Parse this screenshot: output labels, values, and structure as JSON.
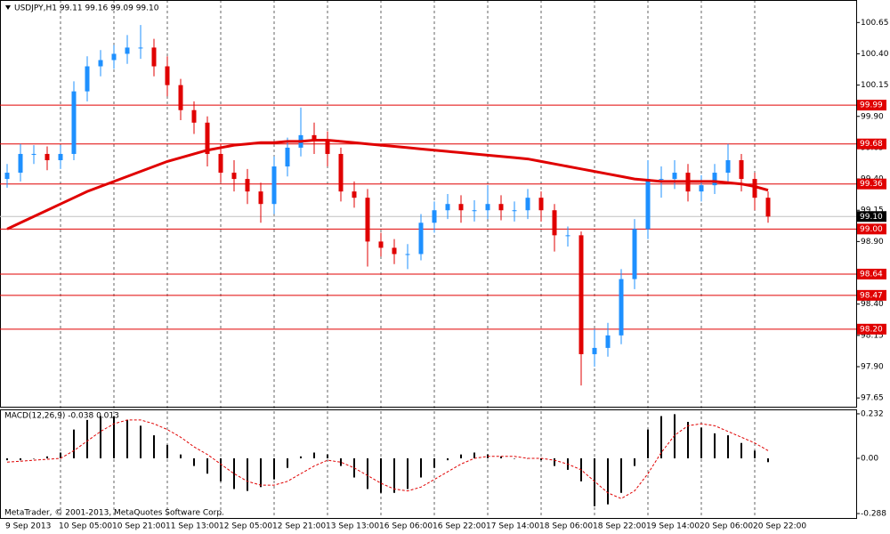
{
  "chart_data": [
    {
      "type": "candlestick",
      "title": "USDJPY,H1  99.11 99.16 99.09 99.10",
      "categories": [
        "9 Sep 2013",
        null,
        null,
        null,
        "10 Sep 05:00",
        null,
        null,
        null,
        "10 Sep 21:00",
        null,
        null,
        null,
        "11 Sep 13:00",
        null,
        null,
        null,
        "12 Sep 05:00",
        null,
        null,
        null,
        "12 Sep 21:00",
        null,
        null,
        null,
        "13 Sep 13:00",
        null,
        null,
        null,
        "16 Sep 06:00",
        null,
        null,
        null,
        "16 Sep 22:00",
        null,
        null,
        null,
        "17 Sep 14:00",
        null,
        null,
        null,
        "18 Sep 06:00",
        null,
        null,
        null,
        "18 Sep 22:00",
        null,
        null,
        null,
        "19 Sep 14:00",
        null,
        null,
        null,
        "20 Sep 06:00",
        null,
        null,
        null,
        "20 Sep 22:00",
        null
      ],
      "open": [
        99.4,
        99.45,
        99.6,
        99.6,
        99.55,
        99.6,
        100.1,
        100.3,
        100.35,
        100.4,
        100.45,
        100.45,
        100.3,
        100.15,
        99.95,
        99.85,
        99.6,
        99.45,
        99.4,
        99.3,
        99.2,
        99.5,
        99.65,
        99.75,
        99.7,
        99.6,
        99.3,
        99.25,
        98.9,
        98.85,
        98.8,
        98.8,
        99.05,
        99.15,
        99.2,
        99.15,
        99.15,
        99.2,
        99.15,
        99.15,
        99.25,
        99.15,
        98.95,
        98.95,
        98.0,
        98.05,
        98.15,
        98.6,
        99.0,
        99.4,
        99.4,
        99.45,
        99.3,
        99.35,
        99.45,
        99.55,
        99.4,
        99.25
      ],
      "high": [
        99.52,
        99.68,
        99.67,
        99.66,
        99.67,
        100.18,
        100.38,
        100.43,
        100.47,
        100.55,
        100.63,
        100.52,
        100.38,
        100.2,
        100.02,
        99.9,
        99.68,
        99.55,
        99.48,
        99.37,
        99.58,
        99.73,
        99.97,
        99.85,
        99.78,
        99.65,
        99.38,
        99.32,
        98.97,
        98.92,
        98.88,
        99.12,
        99.22,
        99.28,
        99.27,
        99.23,
        99.35,
        99.27,
        99.22,
        99.32,
        99.3,
        99.2,
        99.02,
        98.98,
        98.2,
        98.25,
        98.68,
        99.08,
        99.55,
        99.5,
        99.55,
        99.52,
        99.43,
        99.52,
        99.68,
        99.6,
        99.45,
        99.3
      ],
      "low": [
        99.33,
        99.38,
        99.52,
        99.47,
        99.48,
        99.55,
        100.02,
        100.22,
        100.28,
        100.32,
        100.36,
        100.22,
        100.06,
        99.87,
        99.76,
        99.5,
        99.37,
        99.3,
        99.2,
        99.05,
        99.12,
        99.42,
        99.58,
        99.6,
        99.5,
        99.22,
        99.17,
        98.7,
        98.78,
        98.72,
        98.68,
        98.75,
        98.97,
        99.08,
        99.05,
        99.06,
        99.08,
        99.07,
        99.06,
        99.08,
        99.06,
        98.82,
        98.86,
        97.75,
        97.9,
        97.98,
        98.08,
        98.52,
        98.92,
        99.25,
        99.32,
        99.22,
        99.22,
        99.28,
        99.38,
        99.3,
        99.15,
        99.05
      ],
      "close": [
        99.45,
        99.6,
        99.6,
        99.55,
        99.6,
        100.1,
        100.3,
        100.35,
        100.4,
        100.45,
        100.45,
        100.3,
        100.15,
        99.95,
        99.85,
        99.6,
        99.45,
        99.4,
        99.3,
        99.2,
        99.5,
        99.65,
        99.75,
        99.7,
        99.6,
        99.3,
        99.25,
        98.9,
        98.85,
        98.8,
        98.8,
        99.05,
        99.15,
        99.2,
        99.15,
        99.15,
        99.2,
        99.15,
        99.15,
        99.25,
        99.15,
        98.95,
        98.95,
        98.0,
        98.05,
        98.15,
        98.6,
        99.0,
        99.4,
        99.4,
        99.45,
        99.3,
        99.35,
        99.45,
        99.55,
        99.4,
        99.25,
        99.1
      ],
      "up_color": "#1e90ff",
      "down_color": "#e00000",
      "moving_average": {
        "color": "#e00000",
        "values": [
          99.0,
          99.05,
          99.1,
          99.15,
          99.2,
          99.25,
          99.3,
          99.34,
          99.38,
          99.42,
          99.46,
          99.5,
          99.54,
          99.57,
          99.6,
          99.63,
          99.65,
          99.67,
          99.68,
          99.69,
          99.69,
          99.7,
          99.7,
          99.71,
          99.71,
          99.7,
          99.69,
          99.68,
          99.67,
          99.66,
          99.65,
          99.64,
          99.63,
          99.62,
          99.61,
          99.6,
          99.59,
          99.58,
          99.57,
          99.56,
          99.54,
          99.52,
          99.5,
          99.48,
          99.46,
          99.44,
          99.42,
          99.4,
          99.39,
          99.38,
          99.38,
          99.38,
          99.38,
          99.38,
          99.37,
          99.36,
          99.34,
          99.31
        ]
      },
      "levels": [
        99.99,
        99.68,
        99.36,
        {
          "value": 99.0,
          "label": "99.00"
        },
        98.64,
        98.47,
        {
          "value": 98.2,
          "label": "98.20"
        }
      ],
      "level_color": "#e00000",
      "current_price": {
        "value": 99.1,
        "label": "99.10"
      },
      "ylim": [
        97.58,
        100.83
      ],
      "yticks": [
        100.65,
        {
          "value": 100.4,
          "label": "100.40"
        },
        100.15,
        {
          "value": 99.9,
          "label": "99.90"
        },
        99.65,
        {
          "value": 99.4,
          "label": "99.40"
        },
        99.15,
        {
          "value": 98.9,
          "label": "98.90"
        },
        98.65,
        {
          "value": 98.4,
          "label": "98.40"
        },
        98.15,
        {
          "value": 97.9,
          "label": "97.90"
        },
        97.65
      ],
      "grid": true
    },
    {
      "type": "macd",
      "title": "MACD(12,26,9) -0.038 0.013",
      "annotation": "MetaTrader, © 2001-2013, MetaQuotes Software Corp.",
      "series": [
        {
          "name": "MACD",
          "color": "#000000",
          "values": [
            -0.01,
            -0.01,
            0.0,
            0.01,
            0.03,
            0.15,
            0.2,
            0.22,
            0.22,
            0.2,
            0.17,
            0.12,
            0.07,
            0.02,
            -0.04,
            -0.08,
            -0.12,
            -0.16,
            -0.17,
            -0.15,
            -0.11,
            -0.05,
            0.01,
            0.03,
            0.02,
            -0.04,
            -0.1,
            -0.16,
            -0.18,
            -0.18,
            -0.16,
            -0.1,
            -0.05,
            -0.01,
            0.02,
            0.03,
            0.02,
            0.01,
            0.0,
            0.0,
            -0.01,
            -0.04,
            -0.06,
            -0.12,
            -0.25,
            -0.24,
            -0.18,
            -0.04,
            0.15,
            0.22,
            0.23,
            0.19,
            0.16,
            0.13,
            0.12,
            0.08,
            0.04,
            -0.02
          ]
        },
        {
          "name": "Signal",
          "color": "#e00000",
          "values": [
            -0.02,
            -0.015,
            -0.01,
            -0.005,
            0.0,
            0.04,
            0.09,
            0.14,
            0.18,
            0.2,
            0.2,
            0.18,
            0.15,
            0.11,
            0.06,
            0.02,
            -0.03,
            -0.08,
            -0.12,
            -0.14,
            -0.14,
            -0.12,
            -0.08,
            -0.04,
            -0.01,
            -0.02,
            -0.05,
            -0.09,
            -0.13,
            -0.16,
            -0.17,
            -0.15,
            -0.11,
            -0.07,
            -0.03,
            0.0,
            0.01,
            0.01,
            0.01,
            0.0,
            0.0,
            -0.01,
            -0.03,
            -0.06,
            -0.12,
            -0.18,
            -0.21,
            -0.17,
            -0.08,
            0.03,
            0.12,
            0.17,
            0.18,
            0.17,
            0.14,
            0.11,
            0.08,
            0.04
          ]
        }
      ],
      "ylim": [
        -0.311,
        0.255
      ],
      "yticks": [
        0.232,
        {
          "value": 0,
          "label": "0.00"
        },
        -0.288
      ]
    }
  ]
}
